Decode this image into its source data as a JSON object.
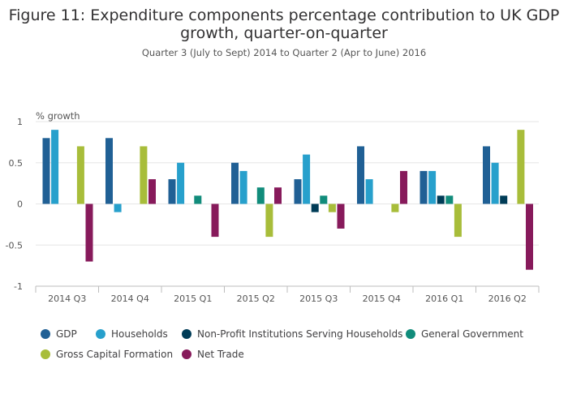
{
  "header": {
    "title_line1": "Figure 11: Expenditure components percentage contribution to UK GDP",
    "title_line2": "growth, quarter-on-quarter",
    "subtitle": "Quarter 3 (July to Sept) 2014 to Quarter 2 (Apr to June) 2016"
  },
  "chart_data": {
    "type": "bar",
    "ylabel": "% growth",
    "ylim": [
      -1,
      1
    ],
    "yticks": [
      "1",
      "0.5",
      "0",
      "-0.5",
      "-1"
    ],
    "ytick_values": [
      1,
      0.5,
      0,
      -0.5,
      -1
    ],
    "categories": [
      "2014 Q3",
      "2014 Q4",
      "2015 Q1",
      "2015 Q2",
      "2015 Q3",
      "2015 Q4",
      "2016 Q1",
      "2016 Q2"
    ],
    "grid": true,
    "legend_position": "bottom",
    "series": [
      {
        "name": "GDP",
        "color": "#206095",
        "values": [
          0.8,
          0.8,
          0.3,
          0.5,
          0.3,
          0.7,
          0.4,
          0.7
        ]
      },
      {
        "name": "Households",
        "color": "#27a0cc",
        "values": [
          0.9,
          -0.1,
          0.5,
          0.4,
          0.6,
          0.3,
          0.4,
          0.5
        ]
      },
      {
        "name": "Non-Profit Institutions Serving Households",
        "color": "#003c57",
        "values": [
          0,
          0,
          0,
          0,
          -0.1,
          0,
          0.1,
          0.1
        ]
      },
      {
        "name": "General Government",
        "color": "#118c7b",
        "values": [
          0,
          0,
          0.1,
          0.2,
          0.1,
          0,
          0.1,
          0
        ]
      },
      {
        "name": "Gross Capital Formation",
        "color": "#a8bd3a",
        "values": [
          0.7,
          0.7,
          0,
          -0.4,
          -0.1,
          -0.1,
          -0.4,
          0.9
        ]
      },
      {
        "name": "Net Trade",
        "color": "#871a5b",
        "values": [
          -0.7,
          0.3,
          -0.4,
          0.2,
          -0.3,
          0.4,
          0,
          -0.8
        ]
      }
    ]
  }
}
